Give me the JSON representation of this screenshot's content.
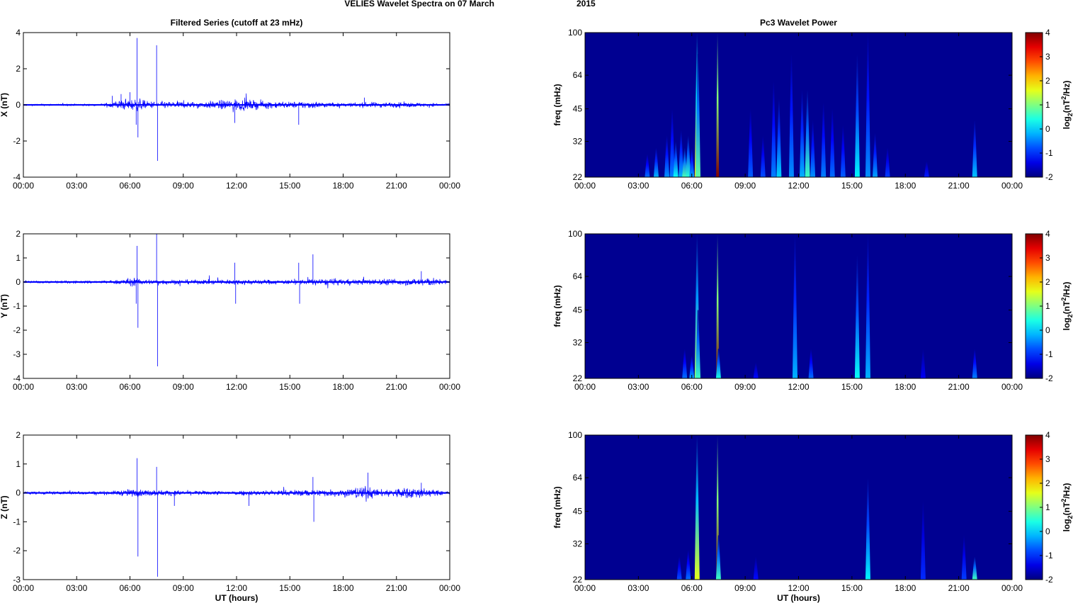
{
  "figure": {
    "title_left": "VELIES Wavelet Spectra on 07 March",
    "title_right": "2015"
  },
  "chart_data": [
    {
      "type": "line",
      "title": "Filtered Series (cutoff at 23 mHz)",
      "xlabel": "",
      "ylabel": "X (nT)",
      "xlim": [
        0,
        24
      ],
      "ylim": [
        -4,
        4
      ],
      "yticks": [
        -4,
        -2,
        0,
        2,
        4
      ],
      "xticklabels": [
        "00:00",
        "03:00",
        "06:00",
        "09:00",
        "12:00",
        "15:00",
        "18:00",
        "21:00",
        "00:00"
      ],
      "line_color": "#0000ff",
      "noise_profile": [
        [
          0,
          0.04
        ],
        [
          4.5,
          0.05
        ],
        [
          5,
          0.2
        ],
        [
          6.5,
          0.3
        ],
        [
          7,
          0.18
        ],
        [
          10,
          0.15
        ],
        [
          11,
          0.22
        ],
        [
          12,
          0.3
        ],
        [
          13,
          0.22
        ],
        [
          15,
          0.15
        ],
        [
          16,
          0.2
        ],
        [
          18,
          0.08
        ],
        [
          19.5,
          0.14
        ],
        [
          22,
          0.12
        ],
        [
          24,
          0.05
        ]
      ],
      "spikes": [
        [
          5.0,
          0.5
        ],
        [
          5.5,
          0.6
        ],
        [
          6.0,
          0.7
        ],
        [
          6.4,
          3.7
        ],
        [
          6.45,
          -1.8
        ],
        [
          6.35,
          -1.1
        ],
        [
          7.5,
          3.3
        ],
        [
          7.55,
          -3.1
        ],
        [
          11.9,
          -1.0
        ],
        [
          15.5,
          -1.1
        ],
        [
          19.2,
          0.4
        ]
      ]
    },
    {
      "type": "heatmap",
      "title": "Pc3 Wavelet Power",
      "xlabel": "",
      "ylabel": "freq (mHz)",
      "xlim": [
        0,
        24
      ],
      "ylim": [
        22,
        100
      ],
      "yscale": "log",
      "yticks": [
        22,
        32,
        45,
        64,
        100
      ],
      "xticklabels": [
        "00:00",
        "03:00",
        "06:00",
        "09:00",
        "12:00",
        "15:00",
        "18:00",
        "21:00",
        "00:00"
      ],
      "colorbar": {
        "label": "log2(nT2/Hz)",
        "range": [
          -2,
          4
        ],
        "ticks": [
          -2,
          -1,
          0,
          1,
          2,
          3,
          4
        ]
      },
      "background_level": -1.9,
      "bursts": [
        [
          3.5,
          28,
          -0.6
        ],
        [
          4.0,
          30,
          -0.2
        ],
        [
          4.6,
          34,
          -0.4
        ],
        [
          4.9,
          45,
          -0.5
        ],
        [
          5.1,
          32,
          0.3
        ],
        [
          5.4,
          36,
          -0.2
        ],
        [
          5.6,
          30,
          0.7
        ],
        [
          5.8,
          34,
          0.5
        ],
        [
          6.0,
          30,
          -0.3
        ],
        [
          6.3,
          100,
          2.0
        ],
        [
          6.35,
          80,
          0.8
        ],
        [
          7.45,
          100,
          4.0
        ],
        [
          9.3,
          45,
          -0.7
        ],
        [
          10.0,
          34,
          -0.8
        ],
        [
          10.6,
          60,
          -0.5
        ],
        [
          10.9,
          50,
          0.0
        ],
        [
          11.6,
          80,
          -0.4
        ],
        [
          12.2,
          55,
          -0.2
        ],
        [
          12.5,
          55,
          0.6
        ],
        [
          12.8,
          40,
          -0.4
        ],
        [
          13.4,
          48,
          -0.5
        ],
        [
          13.9,
          45,
          -0.6
        ],
        [
          14.5,
          38,
          -0.7
        ],
        [
          15.3,
          80,
          0.2
        ],
        [
          15.9,
          100,
          -0.4
        ],
        [
          16.3,
          35,
          -0.3
        ],
        [
          17.0,
          30,
          -0.9
        ],
        [
          19.2,
          26,
          -1.1
        ],
        [
          21.9,
          40,
          -0.1
        ]
      ]
    },
    {
      "type": "line",
      "title": "",
      "xlabel": "",
      "ylabel": "Y (nT)",
      "xlim": [
        0,
        24
      ],
      "ylim": [
        -4,
        2
      ],
      "yticks": [
        -4,
        -3,
        -2,
        -1,
        0,
        1,
        2
      ],
      "xticklabels": [
        "00:00",
        "03:00",
        "06:00",
        "09:00",
        "12:00",
        "15:00",
        "18:00",
        "21:00",
        "00:00"
      ],
      "line_color": "#0000ff",
      "noise_profile": [
        [
          0,
          0.04
        ],
        [
          5,
          0.06
        ],
        [
          6,
          0.15
        ],
        [
          7,
          0.1
        ],
        [
          10,
          0.08
        ],
        [
          12,
          0.1
        ],
        [
          15,
          0.08
        ],
        [
          16.5,
          0.12
        ],
        [
          19,
          0.1
        ],
        [
          20,
          0.12
        ],
        [
          22,
          0.12
        ],
        [
          22.5,
          0.2
        ],
        [
          24,
          0.05
        ]
      ],
      "spikes": [
        [
          6.4,
          1.5
        ],
        [
          6.45,
          -1.9
        ],
        [
          6.35,
          -0.9
        ],
        [
          7.5,
          2.0
        ],
        [
          7.55,
          -3.5
        ],
        [
          11.9,
          0.8
        ],
        [
          11.95,
          -0.9
        ],
        [
          15.5,
          0.8
        ],
        [
          15.55,
          -0.9
        ],
        [
          16.3,
          1.15
        ],
        [
          22.4,
          0.45
        ]
      ]
    },
    {
      "type": "heatmap",
      "title": "",
      "xlabel": "",
      "ylabel": "freq (mHz)",
      "xlim": [
        0,
        24
      ],
      "ylim": [
        22,
        100
      ],
      "yscale": "log",
      "yticks": [
        22,
        32,
        45,
        64,
        100
      ],
      "xticklabels": [
        "00:00",
        "03:00",
        "06:00",
        "09:00",
        "12:00",
        "15:00",
        "18:00",
        "21:00",
        "00:00"
      ],
      "colorbar": {
        "label": "log2(nT2/Hz)",
        "range": [
          -2,
          4
        ],
        "ticks": [
          -2,
          -1,
          0,
          1,
          2,
          3,
          4
        ]
      },
      "background_level": -1.9,
      "bursts": [
        [
          5.6,
          30,
          -0.6
        ],
        [
          6.0,
          28,
          -0.3
        ],
        [
          6.3,
          100,
          1.2
        ],
        [
          6.35,
          45,
          0.6
        ],
        [
          7.45,
          100,
          4.0
        ],
        [
          7.5,
          30,
          0.4
        ],
        [
          9.6,
          26,
          -1.2
        ],
        [
          11.8,
          100,
          -0.2
        ],
        [
          12.7,
          30,
          -0.6
        ],
        [
          15.3,
          80,
          0.3
        ],
        [
          15.9,
          100,
          -0.2
        ],
        [
          19.0,
          30,
          -1.3
        ],
        [
          21.9,
          30,
          -0.5
        ]
      ]
    },
    {
      "type": "line",
      "title": "",
      "xlabel": "UT (hours)",
      "ylabel": "Z (nT)",
      "xlim": [
        0,
        24
      ],
      "ylim": [
        -3,
        2
      ],
      "yticks": [
        -3,
        -2,
        -1,
        0,
        1,
        2
      ],
      "xticklabels": [
        "00:00",
        "03:00",
        "06:00",
        "09:00",
        "12:00",
        "15:00",
        "18:00",
        "21:00",
        "00:00"
      ],
      "line_color": "#0000ff",
      "noise_profile": [
        [
          0,
          0.04
        ],
        [
          5,
          0.06
        ],
        [
          6,
          0.12
        ],
        [
          7,
          0.1
        ],
        [
          10,
          0.06
        ],
        [
          13,
          0.08
        ],
        [
          16,
          0.1
        ],
        [
          18,
          0.12
        ],
        [
          19.3,
          0.22
        ],
        [
          20,
          0.1
        ],
        [
          21,
          0.15
        ],
        [
          22,
          0.2
        ],
        [
          23,
          0.1
        ],
        [
          24,
          0.05
        ]
      ],
      "spikes": [
        [
          6.4,
          1.2
        ],
        [
          6.45,
          -2.2
        ],
        [
          7.5,
          0.9
        ],
        [
          7.55,
          -2.9
        ],
        [
          8.5,
          -0.45
        ],
        [
          12.7,
          -0.45
        ],
        [
          16.3,
          0.55
        ],
        [
          16.35,
          -1.0
        ],
        [
          19.4,
          0.7
        ],
        [
          22.4,
          0.35
        ]
      ]
    },
    {
      "type": "heatmap",
      "title": "",
      "xlabel": "UT (hours)",
      "ylabel": "freq (mHz)",
      "xlim": [
        0,
        24
      ],
      "ylim": [
        22,
        100
      ],
      "yscale": "log",
      "yticks": [
        22,
        32,
        45,
        64,
        100
      ],
      "xticklabels": [
        "00:00",
        "03:00",
        "06:00",
        "09:00",
        "12:00",
        "15:00",
        "18:00",
        "21:00",
        "00:00"
      ],
      "colorbar": {
        "label": "log2(nT2/Hz)",
        "range": [
          -2,
          4
        ],
        "ticks": [
          -2,
          -1,
          0,
          1,
          2,
          3,
          4
        ]
      },
      "background_level": -1.9,
      "bursts": [
        [
          5.3,
          28,
          -0.8
        ],
        [
          5.8,
          30,
          -0.6
        ],
        [
          6.3,
          100,
          1.6
        ],
        [
          7.45,
          100,
          4.0
        ],
        [
          7.5,
          35,
          0.6
        ],
        [
          9.6,
          28,
          -1.2
        ],
        [
          15.9,
          64,
          0.2
        ],
        [
          19.0,
          50,
          -1.0
        ],
        [
          21.3,
          35,
          -0.9
        ],
        [
          21.9,
          28,
          0.6
        ]
      ]
    }
  ]
}
